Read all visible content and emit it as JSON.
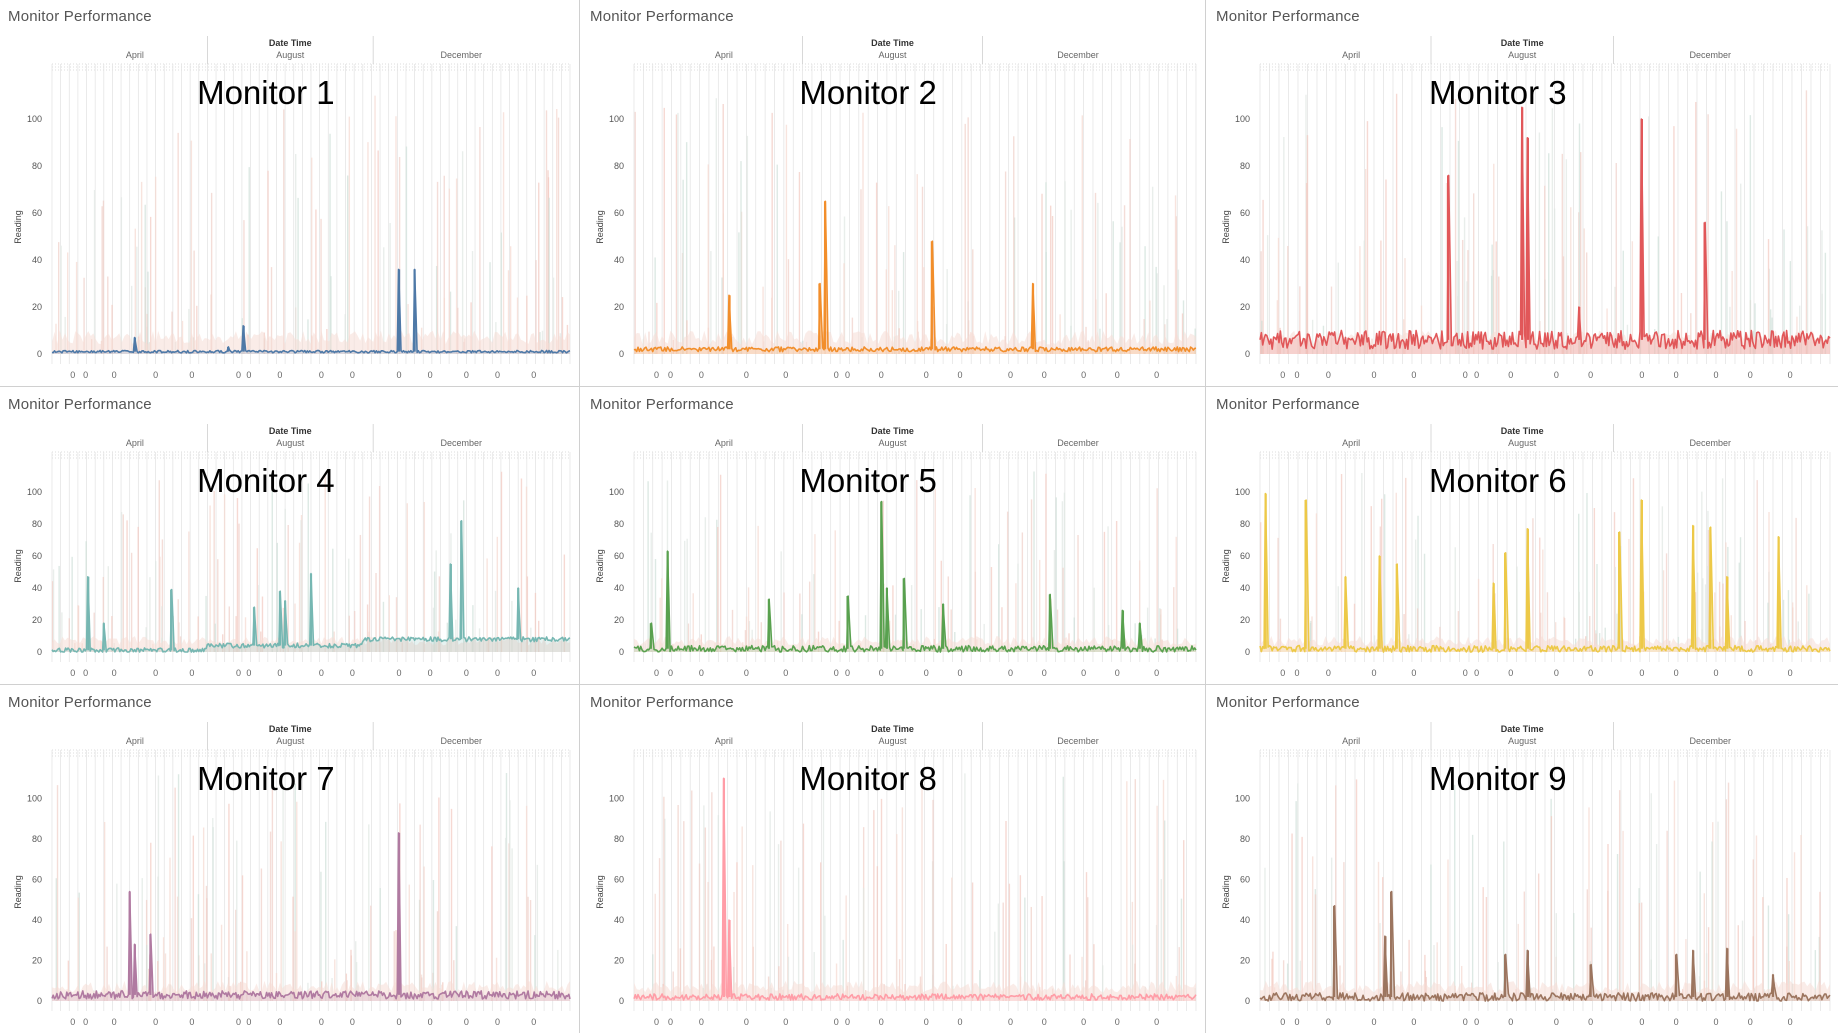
{
  "common": {
    "panel_title": "Monitor Performance",
    "x_axis_title": "Date Time",
    "months": [
      "April",
      "August",
      "December"
    ],
    "y_axis_label": "Reading",
    "y_ticks": [
      "0",
      "20",
      "40",
      "60",
      "80",
      "100"
    ],
    "bottom_marker": "0"
  },
  "chart_data": [
    {
      "type": "line",
      "title": "Monitor 1",
      "panel_title": "Monitor Performance",
      "xlabel": "Date Time",
      "ylabel": "Reading",
      "ylim": [
        0,
        120
      ],
      "x_ticks": [
        "April",
        "August",
        "December"
      ],
      "x_range": [
        0,
        1
      ],
      "color": "#4e79a7",
      "series": [
        {
          "baseline": 1,
          "noise": 0.5,
          "spikes": [
            [
              0.16,
              7
            ],
            [
              0.34,
              3
            ],
            [
              0.37,
              12
            ],
            [
              0.67,
              36
            ],
            [
              0.7,
              36
            ]
          ]
        }
      ]
    },
    {
      "type": "line",
      "title": "Monitor 2",
      "panel_title": "Monitor Performance",
      "xlabel": "Date Time",
      "ylabel": "Reading",
      "ylim": [
        0,
        120
      ],
      "x_ticks": [
        "April",
        "August",
        "December"
      ],
      "x_range": [
        0,
        1
      ],
      "color": "#f28e2b",
      "series": [
        {
          "baseline": 2,
          "noise": 1,
          "spikes": [
            [
              0.17,
              25
            ],
            [
              0.33,
              30
            ],
            [
              0.34,
              65
            ],
            [
              0.53,
              48
            ],
            [
              0.71,
              30
            ]
          ]
        }
      ]
    },
    {
      "type": "line",
      "title": "Monitor 3",
      "panel_title": "Monitor Performance",
      "xlabel": "Date Time",
      "ylabel": "Reading",
      "ylim": [
        0,
        120
      ],
      "x_ticks": [
        "April",
        "August",
        "December"
      ],
      "x_range": [
        0,
        1
      ],
      "color": "#e15759",
      "series": [
        {
          "baseline": 6,
          "noise": 4,
          "spikes": [
            [
              0.33,
              76
            ],
            [
              0.46,
              105
            ],
            [
              0.47,
              92
            ],
            [
              0.67,
              100
            ],
            [
              0.78,
              56
            ],
            [
              0.56,
              20
            ]
          ]
        }
      ]
    },
    {
      "type": "line",
      "title": "Monitor 4",
      "panel_title": "Monitor Performance",
      "xlabel": "Date Time",
      "ylabel": "Reading",
      "ylim": [
        0,
        120
      ],
      "x_ticks": [
        "April",
        "August",
        "December"
      ],
      "x_range": [
        0,
        1
      ],
      "color": "#76b7b2",
      "series": [
        {
          "baseline": 3,
          "noise": 1.5,
          "steps": [
            [
              0,
              1
            ],
            [
              0.3,
              4
            ],
            [
              0.6,
              8
            ],
            [
              1,
              9
            ]
          ],
          "spikes": [
            [
              0.07,
              47
            ],
            [
              0.1,
              18
            ],
            [
              0.23,
              39
            ],
            [
              0.39,
              28
            ],
            [
              0.44,
              38
            ],
            [
              0.45,
              32
            ],
            [
              0.5,
              49
            ],
            [
              0.77,
              55
            ],
            [
              0.79,
              82
            ],
            [
              0.9,
              40
            ]
          ]
        }
      ]
    },
    {
      "type": "line",
      "title": "Monitor 5",
      "panel_title": "Monitor Performance",
      "xlabel": "Date Time",
      "ylabel": "Reading",
      "ylim": [
        0,
        120
      ],
      "x_ticks": [
        "April",
        "August",
        "December"
      ],
      "x_range": [
        0,
        1
      ],
      "color": "#59a14f",
      "series": [
        {
          "baseline": 2,
          "noise": 2,
          "spikes": [
            [
              0.06,
              63
            ],
            [
              0.03,
              18
            ],
            [
              0.24,
              33
            ],
            [
              0.38,
              35
            ],
            [
              0.44,
              94
            ],
            [
              0.45,
              40
            ],
            [
              0.48,
              46
            ],
            [
              0.55,
              30
            ],
            [
              0.74,
              36
            ],
            [
              0.87,
              26
            ],
            [
              0.9,
              18
            ]
          ]
        }
      ]
    },
    {
      "type": "line",
      "title": "Monitor 6",
      "panel_title": "Monitor Performance",
      "xlabel": "Date Time",
      "ylabel": "Reading",
      "ylim": [
        0,
        120
      ],
      "x_ticks": [
        "April",
        "August",
        "December"
      ],
      "x_range": [
        0,
        1
      ],
      "color": "#edc948",
      "series": [
        {
          "baseline": 2,
          "noise": 2,
          "spikes": [
            [
              0.01,
              99
            ],
            [
              0.08,
              95
            ],
            [
              0.15,
              47
            ],
            [
              0.21,
              60
            ],
            [
              0.24,
              55
            ],
            [
              0.41,
              43
            ],
            [
              0.43,
              62
            ],
            [
              0.47,
              77
            ],
            [
              0.63,
              75
            ],
            [
              0.67,
              95
            ],
            [
              0.76,
              79
            ],
            [
              0.79,
              78
            ],
            [
              0.82,
              47
            ],
            [
              0.91,
              72
            ]
          ]
        }
      ]
    },
    {
      "type": "line",
      "title": "Monitor 7",
      "panel_title": "Monitor Performance",
      "xlabel": "Date Time",
      "ylabel": "Reading",
      "ylim": [
        0,
        120
      ],
      "x_ticks": [
        "April",
        "August",
        "December"
      ],
      "x_range": [
        0,
        1
      ],
      "color": "#b07aa1",
      "series": [
        {
          "baseline": 3,
          "noise": 2,
          "spikes": [
            [
              0.15,
              54
            ],
            [
              0.16,
              28
            ],
            [
              0.19,
              33
            ],
            [
              0.67,
              83
            ]
          ]
        }
      ]
    },
    {
      "type": "line",
      "title": "Monitor 8",
      "panel_title": "Monitor Performance",
      "xlabel": "Date Time",
      "ylabel": "Reading",
      "ylim": [
        0,
        120
      ],
      "x_ticks": [
        "April",
        "August",
        "December"
      ],
      "x_range": [
        0,
        1
      ],
      "color": "#ff9da7",
      "series": [
        {
          "baseline": 2,
          "noise": 1.5,
          "spikes": [
            [
              0.16,
              110
            ],
            [
              0.17,
              40
            ]
          ]
        }
      ]
    },
    {
      "type": "line",
      "title": "Monitor 9",
      "panel_title": "Monitor Performance",
      "xlabel": "Date Time",
      "ylabel": "Reading",
      "ylim": [
        0,
        120
      ],
      "x_ticks": [
        "April",
        "August",
        "December"
      ],
      "x_range": [
        0,
        1
      ],
      "color": "#9c755f",
      "series": [
        {
          "baseline": 2,
          "noise": 2,
          "spikes": [
            [
              0.13,
              47
            ],
            [
              0.23,
              54
            ],
            [
              0.22,
              32
            ],
            [
              0.43,
              23
            ],
            [
              0.47,
              25
            ],
            [
              0.58,
              18
            ],
            [
              0.73,
              23
            ],
            [
              0.76,
              25
            ],
            [
              0.82,
              26
            ],
            [
              0.9,
              13
            ]
          ]
        }
      ]
    }
  ]
}
